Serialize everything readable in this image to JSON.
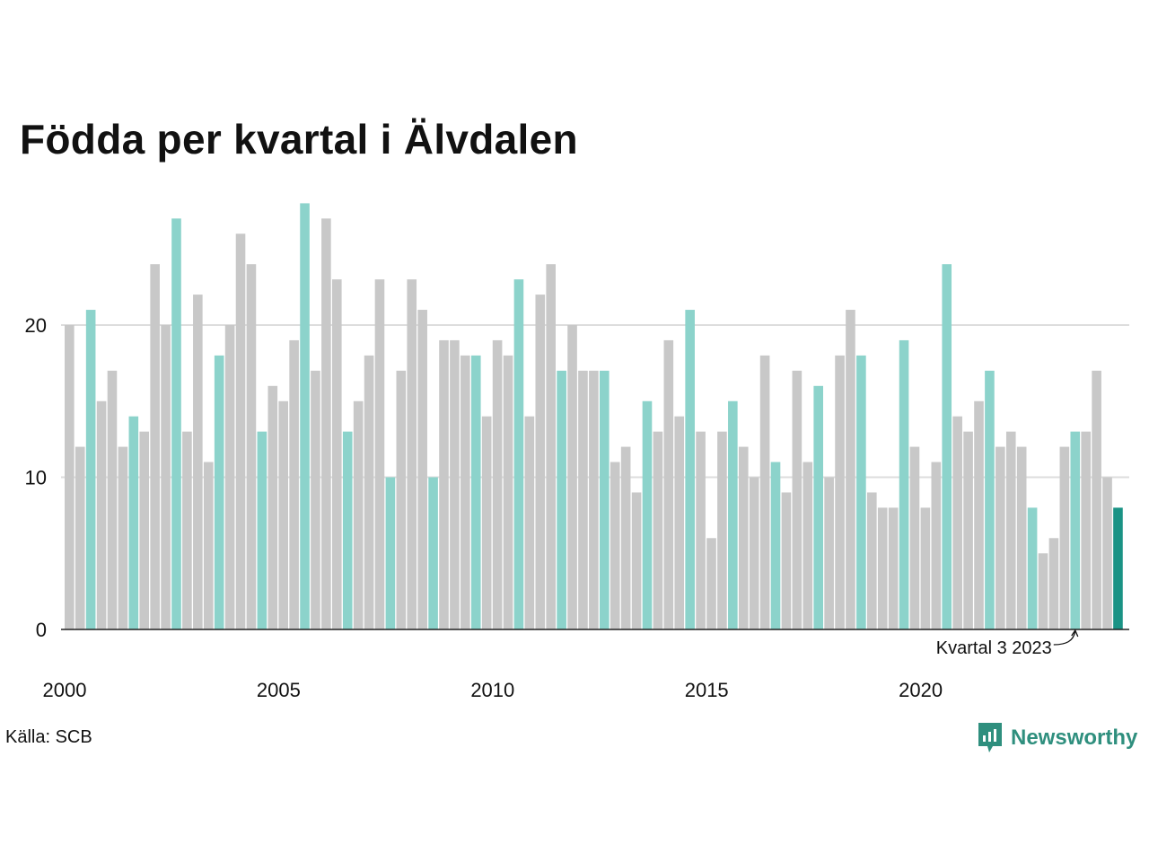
{
  "title": "Födda per kvartal i Älvdalen",
  "source": "Källa: SCB",
  "brand": {
    "name": "Newsworthy",
    "icon": "newsworthy-logo-icon"
  },
  "colors": {
    "other": "#c8c8c8",
    "q3": "#8cd3cb",
    "latest": "#1a9385",
    "grid": "#dddddd",
    "axis": "#222222"
  },
  "chart_data": {
    "type": "bar",
    "title": "Födda per kvartal i Älvdalen",
    "xlabel": "",
    "ylabel": "",
    "ylim": [
      0,
      30
    ],
    "yticks": [
      0,
      10,
      20
    ],
    "xtick_labels": [
      "2000",
      "2005",
      "2010",
      "2015",
      "2020"
    ],
    "grid": true,
    "start": {
      "year": 2000,
      "quarter": 1
    },
    "highlighted_quarter": 3,
    "annotation": {
      "label": "Kvartal 3 2023",
      "year": 2023,
      "quarter": 3
    },
    "values": [
      20,
      12,
      21,
      15,
      17,
      12,
      14,
      13,
      24,
      20,
      27,
      13,
      22,
      11,
      18,
      20,
      26,
      24,
      13,
      16,
      15,
      19,
      28,
      17,
      27,
      23,
      13,
      15,
      18,
      23,
      10,
      17,
      23,
      21,
      10,
      19,
      19,
      18,
      18,
      14,
      19,
      18,
      23,
      14,
      22,
      24,
      17,
      20,
      17,
      17,
      17,
      11,
      12,
      9,
      15,
      13,
      19,
      14,
      21,
      13,
      6,
      13,
      15,
      12,
      10,
      18,
      11,
      9,
      17,
      11,
      16,
      10,
      18,
      21,
      18,
      9,
      8,
      8,
      19,
      12,
      8,
      11,
      24,
      14,
      13,
      15,
      17,
      12,
      13,
      12,
      8,
      5,
      6,
      12,
      13,
      13,
      17,
      10,
      8
    ]
  }
}
